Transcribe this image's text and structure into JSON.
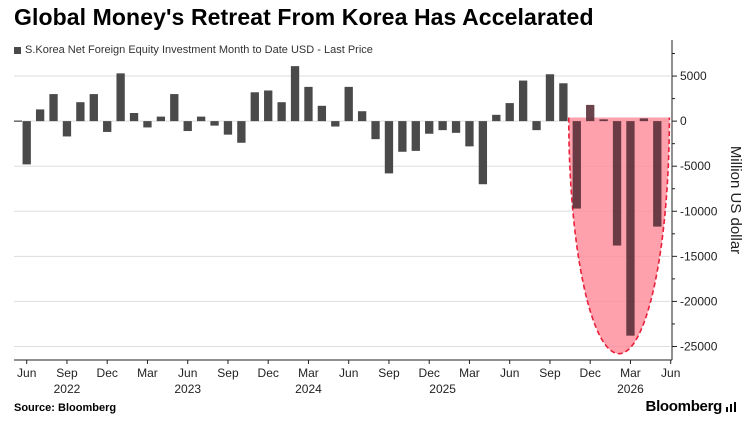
{
  "title": "Global Money's Retreat From Korea Has Accelarated",
  "source": "Source: Bloomberg",
  "brand": "Bloomberg",
  "colors": {
    "bar": "#4a4a4a",
    "highlight_fill": "#ff8a99",
    "highlight_stroke": "#e8203a",
    "grid": "#dddddd"
  },
  "chart_data": {
    "type": "bar",
    "legend": "S.Korea Net Foreign Equity Investment Month to Date USD - Last Price",
    "ylabel": "Million US dollar",
    "ylim": [
      -26500,
      9000
    ],
    "yticks": [
      5000,
      0,
      -5000,
      -10000,
      -15000,
      -20000,
      -25000
    ],
    "ytick_labels": [
      "5000",
      "0",
      "-5000",
      "-10000",
      "-15000",
      "-20000",
      "-25000"
    ],
    "categories": [
      "2022-06",
      "2022-07",
      "2022-08",
      "2022-09",
      "2022-10",
      "2022-11",
      "2022-12",
      "2023-01",
      "2023-02",
      "2023-03",
      "2023-04",
      "2023-05",
      "2023-06",
      "2023-07",
      "2023-08",
      "2023-09",
      "2023-10",
      "2023-11",
      "2023-12",
      "2024-01",
      "2024-02",
      "2024-03",
      "2024-04",
      "2024-05",
      "2024-06",
      "2024-07",
      "2024-08",
      "2024-09",
      "2024-10",
      "2024-11",
      "2024-12",
      "2025-01",
      "2025-02",
      "2025-03",
      "2025-04",
      "2025-05",
      "2025-06",
      "2025-07",
      "2025-08",
      "2025-09",
      "2025-10",
      "2025-11",
      "2025-12",
      "2026-01",
      "2026-02",
      "2026-03",
      "2026-04",
      "2026-05"
    ],
    "values": [
      -4800,
      1300,
      3000,
      -1700,
      2100,
      3000,
      -1200,
      5300,
      900,
      -700,
      500,
      3000,
      -1100,
      500,
      -500,
      -1500,
      -2400,
      3200,
      3400,
      2100,
      6100,
      3800,
      1700,
      -600,
      3800,
      1100,
      -2000,
      -5800,
      -3400,
      -3300,
      -1400,
      -1000,
      -1300,
      -2800,
      -7000,
      700,
      2000,
      4500,
      -1000,
      5200,
      4200,
      -9700,
      1800,
      200,
      -13800,
      -23800,
      300,
      -11700
    ],
    "xtick_labels": [
      {
        "label": "Jun",
        "at": "2022-06"
      },
      {
        "label": "Sep",
        "at": "2022-09"
      },
      {
        "label": "Dec",
        "at": "2022-12"
      },
      {
        "label": "Mar",
        "at": "2023-03"
      },
      {
        "label": "Jun",
        "at": "2023-06"
      },
      {
        "label": "Sep",
        "at": "2023-09"
      },
      {
        "label": "Dec",
        "at": "2023-12"
      },
      {
        "label": "Mar",
        "at": "2024-03"
      },
      {
        "label": "Jun",
        "at": "2024-06"
      },
      {
        "label": "Sep",
        "at": "2024-09"
      },
      {
        "label": "Dec",
        "at": "2024-12"
      },
      {
        "label": "Mar",
        "at": "2025-03"
      },
      {
        "label": "Jun",
        "at": "2025-06"
      },
      {
        "label": "Sep",
        "at": "2025-09"
      },
      {
        "label": "Dec",
        "at": "2025-12"
      },
      {
        "label": "Mar",
        "at": "2026-03"
      },
      {
        "label": "Jun",
        "at": "2026-06"
      }
    ],
    "year_labels": [
      {
        "label": "2022",
        "at": "2022-09"
      },
      {
        "label": "2023",
        "at": "2023-06"
      },
      {
        "label": "2024",
        "at": "2024-03"
      },
      {
        "label": "2025",
        "at": "2025-01"
      },
      {
        "label": "2026",
        "at": "2026-03"
      }
    ],
    "annotation": {
      "shape": "half-ellipse",
      "from": "2025-11",
      "to": "2026-05",
      "bottom": -25800,
      "top": 400
    },
    "grid": true,
    "legend_placement": "top-left"
  }
}
